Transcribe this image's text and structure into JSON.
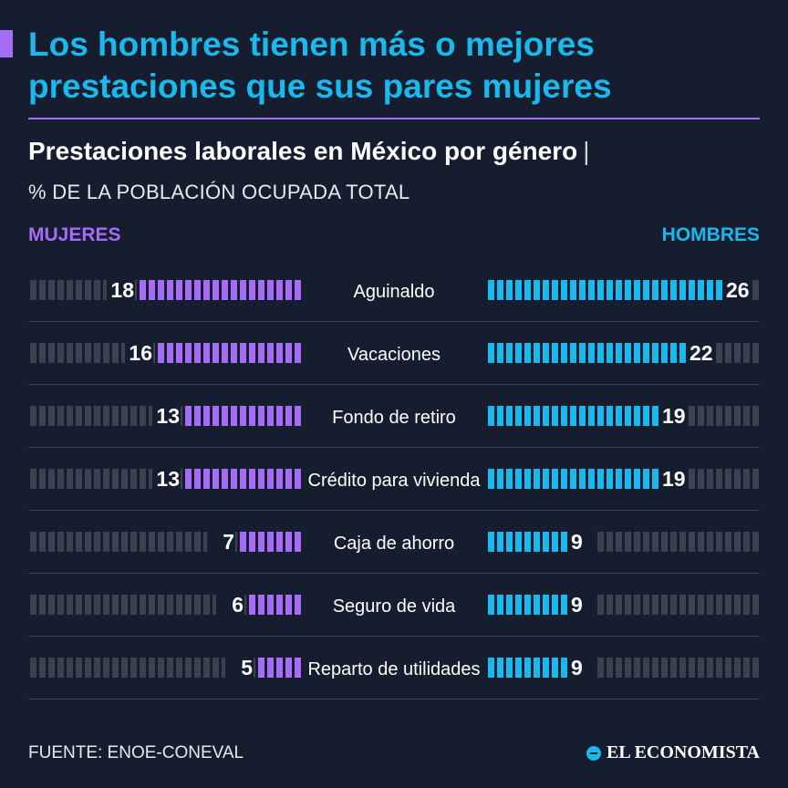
{
  "headline": "Los hombres tienen más o mejores prestaciones que sus pares mujeres",
  "footer": {
    "source": "FUENTE: ENOE-CONEVAL",
    "logo_text": "EL ECONOMISTA"
  },
  "colors": {
    "women": "#a56cf5",
    "men": "#19b9ee",
    "empty": "#3a4150",
    "background": "#151d2e"
  },
  "chart_data": {
    "type": "bar",
    "title": "Prestaciones laborales en México por género",
    "title_separator": "|",
    "unit_label": "% DE LA POBLACIÓN OCUPADA TOTAL",
    "legend": {
      "left": "MUJERES",
      "right": "HOMBRES"
    },
    "xlim": [
      0,
      30
    ],
    "categories": [
      "Aguinaldo",
      "Vacaciones",
      "Fondo de retiro",
      "Crédito para vivienda",
      "Caja de ahorro",
      "Seguro de vida",
      "Reparto de utilidades"
    ],
    "series": [
      {
        "name": "MUJERES",
        "values": [
          18,
          16,
          13,
          13,
          7,
          6,
          5
        ]
      },
      {
        "name": "HOMBRES",
        "values": [
          26,
          22,
          19,
          19,
          9,
          9,
          9
        ]
      }
    ]
  }
}
